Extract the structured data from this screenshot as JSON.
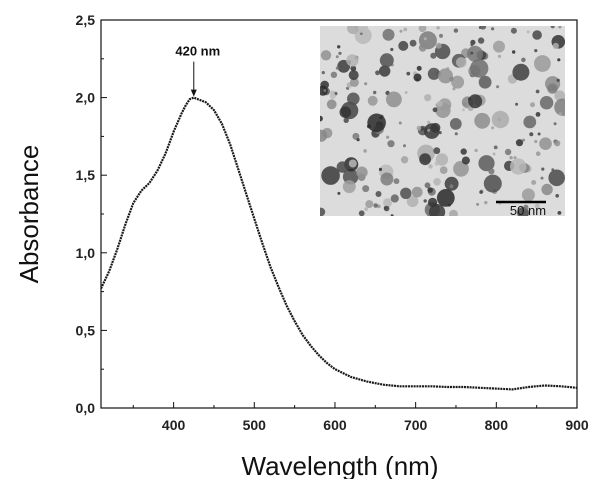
{
  "chart_data": {
    "type": "line",
    "title": "",
    "xlabel": "Wavelength (nm)",
    "ylabel": "Absorbance",
    "xlim": [
      310,
      900
    ],
    "ylim": [
      0,
      2.5
    ],
    "xticks": [
      "400",
      "500",
      "600",
      "700",
      "800",
      "900"
    ],
    "xtick_values": [
      400,
      500,
      600,
      700,
      800,
      900
    ],
    "yticks": [
      "0,0",
      "0,5",
      "1,0",
      "1,5",
      "2,0",
      "2,5"
    ],
    "ytick_values": [
      0,
      0.5,
      1.0,
      1.5,
      2.0,
      2.5
    ],
    "grid": false,
    "series": [
      {
        "color": "#1a1a1a",
        "x": [
          310,
          320,
          330,
          340,
          350,
          360,
          370,
          380,
          390,
          400,
          410,
          415,
          420,
          425,
          430,
          440,
          450,
          460,
          470,
          480,
          490,
          500,
          510,
          520,
          530,
          540,
          550,
          560,
          570,
          580,
          590,
          600,
          620,
          640,
          660,
          680,
          700,
          720,
          740,
          760,
          780,
          800,
          820,
          840,
          860,
          880,
          900
        ],
        "y": [
          0.77,
          0.88,
          1.02,
          1.18,
          1.32,
          1.4,
          1.45,
          1.53,
          1.64,
          1.78,
          1.9,
          1.95,
          1.99,
          2.0,
          1.99,
          1.97,
          1.92,
          1.83,
          1.7,
          1.54,
          1.38,
          1.22,
          1.06,
          0.91,
          0.78,
          0.66,
          0.56,
          0.47,
          0.4,
          0.34,
          0.29,
          0.25,
          0.2,
          0.17,
          0.15,
          0.14,
          0.14,
          0.14,
          0.135,
          0.135,
          0.13,
          0.125,
          0.12,
          0.135,
          0.145,
          0.14,
          0.13
        ]
      }
    ],
    "annotations": [
      {
        "text": "420 nm",
        "x": 425,
        "y": 2.0
      }
    ],
    "inset": {
      "type": "micrograph",
      "scale_bar_label": "50 nm"
    }
  }
}
